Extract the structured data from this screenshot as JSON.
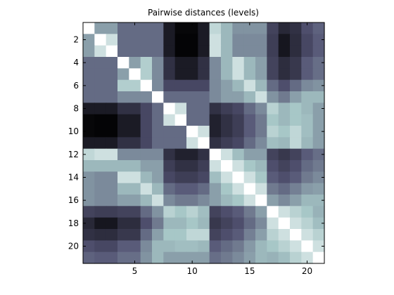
{
  "chart_data": {
    "type": "heatmap",
    "title": "Pairwise distances (levels)",
    "xlabel": "",
    "ylabel": "",
    "colormap": "bone",
    "grid": false,
    "legend": "none",
    "n": 21,
    "x_ticks": [
      5,
      10,
      15,
      20
    ],
    "y_ticks": [
      2,
      4,
      6,
      8,
      10,
      12,
      14,
      16,
      18,
      20
    ],
    "xlim": [
      0.5,
      21.5
    ],
    "ylim": [
      21.5,
      0.5
    ],
    "level_range": [
      0,
      1
    ],
    "matrix": [
      [
        1.0,
        0.62,
        0.62,
        0.45,
        0.45,
        0.45,
        0.45,
        0.12,
        0.03,
        0.03,
        0.12,
        0.82,
        0.7,
        0.58,
        0.58,
        0.58,
        0.3,
        0.18,
        0.22,
        0.35,
        0.42
      ],
      [
        0.62,
        1.0,
        0.86,
        0.45,
        0.45,
        0.45,
        0.45,
        0.12,
        0.02,
        0.02,
        0.12,
        0.86,
        0.7,
        0.55,
        0.55,
        0.55,
        0.28,
        0.1,
        0.2,
        0.32,
        0.4
      ],
      [
        0.62,
        0.86,
        1.0,
        0.45,
        0.45,
        0.45,
        0.45,
        0.12,
        0.02,
        0.02,
        0.12,
        0.86,
        0.7,
        0.55,
        0.55,
        0.55,
        0.28,
        0.1,
        0.2,
        0.32,
        0.4
      ],
      [
        0.45,
        0.45,
        0.45,
        1.0,
        0.62,
        0.78,
        0.55,
        0.22,
        0.12,
        0.12,
        0.22,
        0.55,
        0.7,
        0.86,
        0.7,
        0.62,
        0.3,
        0.2,
        0.25,
        0.4,
        0.46
      ],
      [
        0.45,
        0.45,
        0.45,
        0.62,
        1.0,
        0.78,
        0.55,
        0.22,
        0.12,
        0.12,
        0.22,
        0.55,
        0.7,
        0.86,
        0.7,
        0.62,
        0.3,
        0.2,
        0.25,
        0.4,
        0.46
      ],
      [
        0.45,
        0.45,
        0.45,
        0.78,
        0.78,
        1.0,
        0.55,
        0.32,
        0.32,
        0.32,
        0.32,
        0.55,
        0.62,
        0.7,
        0.86,
        0.7,
        0.45,
        0.35,
        0.45,
        0.55,
        0.58
      ],
      [
        0.45,
        0.45,
        0.45,
        0.55,
        0.55,
        0.55,
        1.0,
        0.45,
        0.45,
        0.45,
        0.45,
        0.55,
        0.62,
        0.62,
        0.7,
        0.86,
        0.58,
        0.5,
        0.62,
        0.7,
        0.7
      ],
      [
        0.12,
        0.12,
        0.12,
        0.22,
        0.22,
        0.32,
        0.45,
        1.0,
        0.86,
        0.45,
        0.45,
        0.22,
        0.28,
        0.32,
        0.45,
        0.55,
        0.8,
        0.7,
        0.75,
        0.7,
        0.62
      ],
      [
        0.03,
        0.02,
        0.02,
        0.12,
        0.12,
        0.32,
        0.45,
        0.86,
        1.0,
        0.45,
        0.45,
        0.15,
        0.22,
        0.28,
        0.4,
        0.5,
        0.75,
        0.7,
        0.75,
        0.72,
        0.62
      ],
      [
        0.03,
        0.02,
        0.02,
        0.12,
        0.12,
        0.32,
        0.45,
        0.45,
        0.45,
        1.0,
        0.86,
        0.15,
        0.22,
        0.28,
        0.4,
        0.5,
        0.8,
        0.75,
        0.82,
        0.72,
        0.62
      ],
      [
        0.12,
        0.12,
        0.12,
        0.22,
        0.22,
        0.32,
        0.45,
        0.45,
        0.45,
        0.86,
        1.0,
        0.22,
        0.28,
        0.32,
        0.45,
        0.55,
        0.72,
        0.7,
        0.82,
        0.7,
        0.62
      ],
      [
        0.82,
        0.86,
        0.86,
        0.55,
        0.55,
        0.55,
        0.55,
        0.22,
        0.15,
        0.15,
        0.22,
        1.0,
        0.86,
        0.72,
        0.62,
        0.62,
        0.3,
        0.25,
        0.3,
        0.4,
        0.46
      ],
      [
        0.7,
        0.7,
        0.7,
        0.7,
        0.7,
        0.62,
        0.62,
        0.28,
        0.22,
        0.22,
        0.28,
        0.86,
        1.0,
        0.86,
        0.75,
        0.7,
        0.35,
        0.3,
        0.35,
        0.45,
        0.5
      ],
      [
        0.58,
        0.55,
        0.55,
        0.86,
        0.86,
        0.7,
        0.62,
        0.32,
        0.28,
        0.28,
        0.32,
        0.72,
        0.86,
        1.0,
        0.86,
        0.75,
        0.4,
        0.35,
        0.4,
        0.5,
        0.55
      ],
      [
        0.58,
        0.55,
        0.55,
        0.7,
        0.7,
        0.86,
        0.7,
        0.45,
        0.4,
        0.4,
        0.45,
        0.62,
        0.75,
        0.86,
        1.0,
        0.86,
        0.5,
        0.45,
        0.52,
        0.6,
        0.62
      ],
      [
        0.58,
        0.55,
        0.55,
        0.62,
        0.62,
        0.7,
        0.86,
        0.55,
        0.5,
        0.5,
        0.55,
        0.62,
        0.7,
        0.75,
        0.86,
        1.0,
        0.62,
        0.55,
        0.62,
        0.7,
        0.7
      ],
      [
        0.3,
        0.28,
        0.28,
        0.3,
        0.3,
        0.45,
        0.58,
        0.8,
        0.75,
        0.8,
        0.72,
        0.3,
        0.35,
        0.4,
        0.5,
        0.62,
        1.0,
        0.86,
        0.8,
        0.75,
        0.68
      ],
      [
        0.18,
        0.1,
        0.1,
        0.2,
        0.2,
        0.35,
        0.5,
        0.7,
        0.7,
        0.75,
        0.7,
        0.25,
        0.3,
        0.35,
        0.45,
        0.55,
        0.86,
        1.0,
        0.86,
        0.8,
        0.72
      ],
      [
        0.22,
        0.2,
        0.2,
        0.25,
        0.25,
        0.45,
        0.62,
        0.75,
        0.75,
        0.82,
        0.82,
        0.3,
        0.35,
        0.4,
        0.52,
        0.62,
        0.8,
        0.86,
        1.0,
        0.86,
        0.8
      ],
      [
        0.35,
        0.32,
        0.32,
        0.4,
        0.4,
        0.55,
        0.7,
        0.7,
        0.72,
        0.72,
        0.7,
        0.4,
        0.45,
        0.5,
        0.6,
        0.7,
        0.75,
        0.8,
        0.86,
        1.0,
        0.86
      ],
      [
        0.42,
        0.4,
        0.4,
        0.46,
        0.46,
        0.58,
        0.7,
        0.62,
        0.62,
        0.62,
        0.62,
        0.46,
        0.5,
        0.55,
        0.62,
        0.7,
        0.68,
        0.72,
        0.8,
        0.86,
        1.0
      ]
    ]
  }
}
